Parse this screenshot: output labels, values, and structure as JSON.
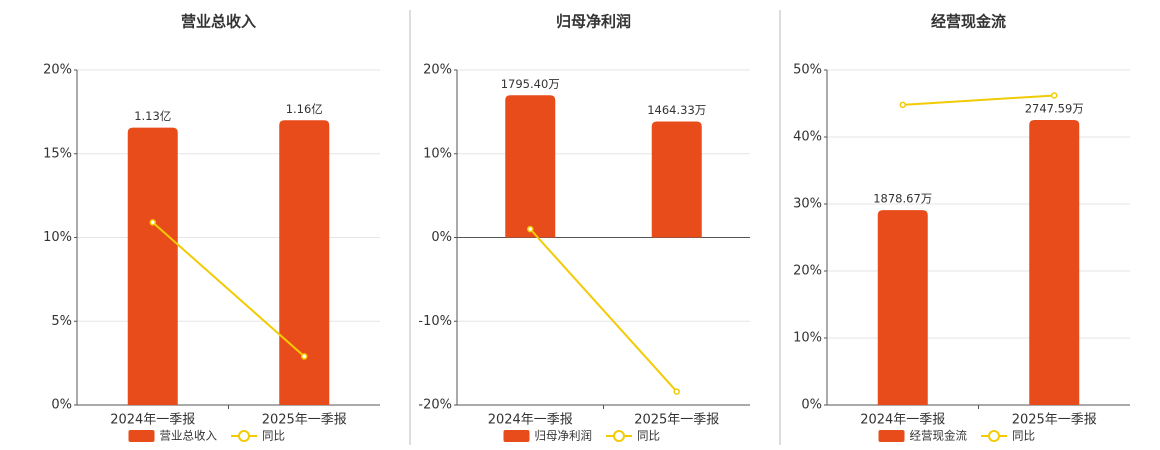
{
  "chart_data": [
    {
      "type": "bar-line",
      "title": "营业总收入",
      "categories": [
        "2024年一季报",
        "2025年一季报"
      ],
      "series": [
        {
          "name": "营业总收入",
          "color": "#e84c1a",
          "axis": "y2",
          "values": [
            1.13,
            1.16
          ],
          "value_labels": [
            "1.13亿",
            "1.16亿"
          ]
        },
        {
          "name": "同比",
          "color": "#f2cb05",
          "values": [
            10.9,
            2.9
          ]
        }
      ],
      "ylim": [
        0,
        20
      ],
      "yticks": [
        {
          "value": 0,
          "label": "0%"
        },
        {
          "value": 5,
          "label": "5%"
        },
        {
          "value": 10,
          "label": "10%"
        },
        {
          "value": 15,
          "label": "15%"
        },
        {
          "value": 20,
          "label": "20%"
        }
      ],
      "y2lim": [
        0,
        1.365
      ],
      "grid": true
    },
    {
      "type": "bar-line",
      "title": "归母净利润",
      "categories": [
        "2024年一季报",
        "2025年一季报"
      ],
      "series": [
        {
          "name": "归母净利润",
          "color": "#e84c1a",
          "axis": "y2",
          "values": [
            1795.4,
            1464.33
          ],
          "value_labels": [
            "1795.40万",
            "1464.33万"
          ]
        },
        {
          "name": "同比",
          "color": "#f2cb05",
          "values": [
            1.0,
            -18.4
          ]
        }
      ],
      "ylim": [
        -20,
        20
      ],
      "yticks": [
        {
          "value": -20,
          "label": "-20%"
        },
        {
          "value": -10,
          "label": "-10%"
        },
        {
          "value": 0,
          "label": "0%"
        },
        {
          "value": 10,
          "label": "10%"
        },
        {
          "value": 20,
          "label": "20%"
        }
      ],
      "y2lim": [
        -2115,
        2115
      ],
      "grid": true
    },
    {
      "type": "bar-line",
      "title": "经营现金流",
      "categories": [
        "2024年一季报",
        "2025年一季报"
      ],
      "series": [
        {
          "name": "经营现金流",
          "color": "#e84c1a",
          "axis": "y2",
          "values": [
            1878.67,
            2747.59
          ],
          "value_labels": [
            "1878.67万",
            "2747.59万"
          ]
        },
        {
          "name": "同比",
          "color": "#f2cb05",
          "values": [
            44.8,
            46.2
          ]
        }
      ],
      "ylim": [
        0,
        50
      ],
      "yticks": [
        {
          "value": 0,
          "label": "0%"
        },
        {
          "value": 10,
          "label": "10%"
        },
        {
          "value": 20,
          "label": "20%"
        },
        {
          "value": 30,
          "label": "30%"
        },
        {
          "value": 40,
          "label": "40%"
        },
        {
          "value": 50,
          "label": "50%"
        }
      ],
      "y2lim": [
        0,
        3230
      ],
      "grid": true
    }
  ]
}
